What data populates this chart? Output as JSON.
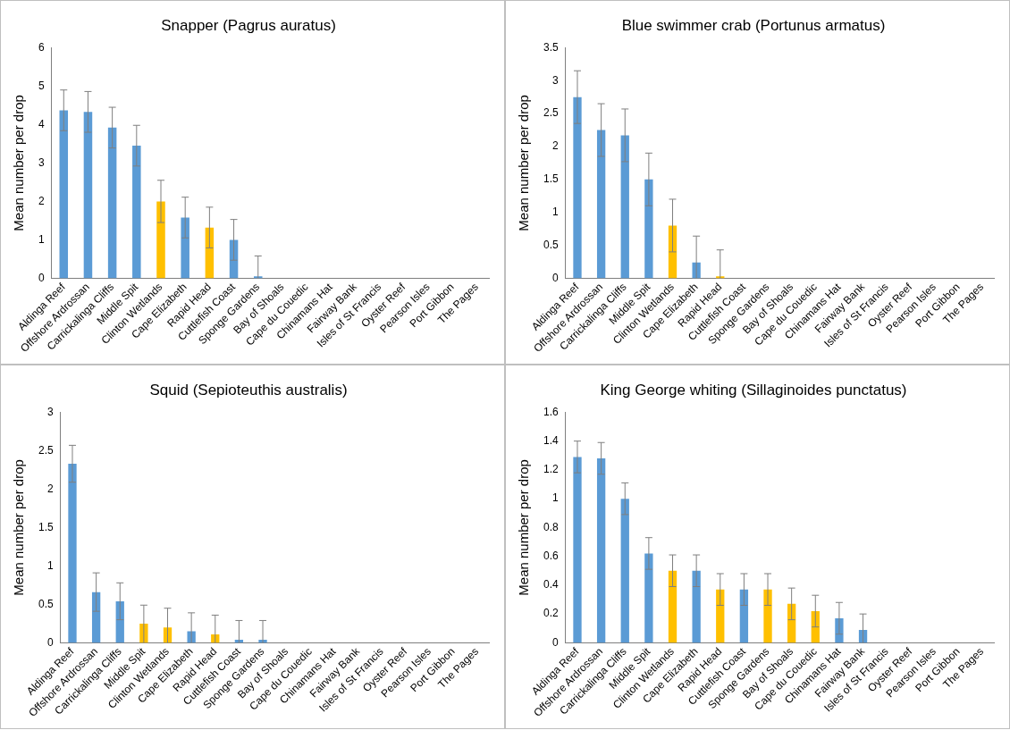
{
  "chart_data": [
    {
      "type": "bar",
      "title": "Snapper (Pagrus auratus)",
      "ylabel": "Mean number per drop",
      "categories": [
        "Aldinga Reef",
        "Offshore Ardrossan",
        "Carrickalinga Cliffs",
        "Middle Spit",
        "Clinton Wetlands",
        "Cape Elizabeth",
        "Rapid Head",
        "Cuttlefish Coast",
        "Sponge Gardens",
        "Bay of Shoals",
        "Cape du Couedic",
        "Chinamans Hat",
        "Fairway Bank",
        "Isles of St Francis",
        "Oyster Reef",
        "Pearson Isles",
        "Port Gibbon",
        "The Pages"
      ],
      "values": [
        4.37,
        4.33,
        3.92,
        3.45,
        2.0,
        1.58,
        1.32,
        1.0,
        0.05,
        0,
        0,
        0,
        0,
        0,
        0,
        0,
        0,
        0
      ],
      "errors": [
        0.53,
        0.53,
        0.53,
        0.53,
        0.55,
        0.53,
        0.53,
        0.53,
        [
          0,
          0.58
        ],
        null,
        null,
        null,
        null,
        null,
        null,
        null,
        null,
        null
      ],
      "colors": [
        "#5b9bd5",
        "#5b9bd5",
        "#5b9bd5",
        "#5b9bd5",
        "#ffc000",
        "#5b9bd5",
        "#ffc000",
        "#5b9bd5",
        "#5b9bd5",
        "#5b9bd5",
        "#5b9bd5",
        "#5b9bd5",
        "#5b9bd5",
        "#5b9bd5",
        "#5b9bd5",
        "#5b9bd5",
        "#5b9bd5",
        "#5b9bd5"
      ],
      "ylim": [
        0,
        6
      ],
      "yticks": [
        0,
        1,
        2,
        3,
        4,
        5,
        6
      ]
    },
    {
      "type": "bar",
      "title": "Blue swimmer crab (Portunus armatus)",
      "ylabel": "Mean number per drop",
      "categories": [
        "Aldinga Reef",
        "Offshore Ardrossan",
        "Carrickalinga Cliffs",
        "Middle Spit",
        "Clinton Wetlands",
        "Cape Elizabeth",
        "Rapid Head",
        "Cuttlefish Coast",
        "Sponge Gardens",
        "Bay of Shoals",
        "Cape du Couedic",
        "Chinamans Hat",
        "Fairway Bank",
        "Isles of St Francis",
        "Oyster Reef",
        "Pearson Isles",
        "Port Gibbon",
        "The Pages"
      ],
      "values": [
        2.75,
        2.25,
        2.17,
        1.5,
        0.8,
        0.24,
        0.03,
        0,
        0,
        0,
        0,
        0,
        0,
        0,
        0,
        0,
        0,
        0
      ],
      "errors": [
        0.4,
        0.4,
        0.4,
        0.4,
        0.4,
        [
          0,
          0.64
        ],
        [
          0,
          0.43
        ],
        null,
        null,
        null,
        null,
        null,
        null,
        null,
        null,
        null,
        null,
        null
      ],
      "colors": [
        "#5b9bd5",
        "#5b9bd5",
        "#5b9bd5",
        "#5b9bd5",
        "#ffc000",
        "#5b9bd5",
        "#ffc000",
        "#5b9bd5",
        "#5b9bd5",
        "#5b9bd5",
        "#5b9bd5",
        "#5b9bd5",
        "#5b9bd5",
        "#5b9bd5",
        "#5b9bd5",
        "#5b9bd5",
        "#5b9bd5",
        "#5b9bd5"
      ],
      "ylim": [
        0,
        3.5
      ],
      "yticks": [
        0,
        0.5,
        1,
        1.5,
        2,
        2.5,
        3,
        3.5
      ]
    },
    {
      "type": "bar",
      "title": "Squid (Sepioteuthis australis)",
      "ylabel": "Mean number per drop",
      "categories": [
        "Aldinga Reef",
        "Offshore Ardrossan",
        "Carrickalinga Cliffs",
        "Middle Spit",
        "Clinton Wetlands",
        "Cape Elizabeth",
        "Rapid Head",
        "Cuttlefish Coast",
        "Sponge Gardens",
        "Bay of Shoals",
        "Cape du Couedic",
        "Chinamans Hat",
        "Fairway Bank",
        "Isles of St Francis",
        "Oyster Reef",
        "Pearson Isles",
        "Port Gibbon",
        "The Pages"
      ],
      "values": [
        2.33,
        0.66,
        0.54,
        0.25,
        0.2,
        0.15,
        0.11,
        0.04,
        0.04,
        0,
        0,
        0,
        0,
        0,
        0,
        0,
        0,
        0
      ],
      "errors": [
        0.24,
        0.25,
        0.24,
        [
          0,
          0.49
        ],
        [
          0,
          0.45
        ],
        [
          0,
          0.39
        ],
        [
          0,
          0.36
        ],
        [
          0,
          0.29
        ],
        [
          0,
          0.29
        ],
        null,
        null,
        null,
        null,
        null,
        null,
        null,
        null,
        null
      ],
      "colors": [
        "#5b9bd5",
        "#5b9bd5",
        "#5b9bd5",
        "#ffc000",
        "#ffc000",
        "#5b9bd5",
        "#ffc000",
        "#5b9bd5",
        "#5b9bd5",
        "#5b9bd5",
        "#5b9bd5",
        "#5b9bd5",
        "#5b9bd5",
        "#5b9bd5",
        "#5b9bd5",
        "#5b9bd5",
        "#5b9bd5",
        "#5b9bd5"
      ],
      "ylim": [
        0,
        3
      ],
      "yticks": [
        0,
        0.5,
        1,
        1.5,
        2,
        2.5,
        3
      ]
    },
    {
      "type": "bar",
      "title": "King George whiting (Sillaginoides punctatus)",
      "ylabel": "Mean number per drop",
      "categories": [
        "Aldinga Reef",
        "Offshore Ardrossan",
        "Carrickalinga Cliffs",
        "Middle Spit",
        "Clinton Wetlands",
        "Cape Elizabeth",
        "Rapid Head",
        "Cuttlefish Coast",
        "Sponge Gardens",
        "Bay of Shoals",
        "Cape du Couedic",
        "Chinamans Hat",
        "Fairway Bank",
        "Isles of St Francis",
        "Oyster Reef",
        "Pearson Isles",
        "Port Gibbon",
        "The Pages"
      ],
      "values": [
        1.29,
        1.28,
        1.0,
        0.62,
        0.5,
        0.5,
        0.37,
        0.37,
        0.37,
        0.27,
        0.22,
        0.17,
        0.09,
        0,
        0,
        0,
        0,
        0
      ],
      "errors": [
        0.11,
        0.11,
        0.11,
        0.11,
        0.11,
        0.11,
        0.11,
        0.11,
        0.11,
        0.11,
        0.11,
        0.11,
        [
          0,
          0.2
        ],
        null,
        null,
        null,
        null,
        null
      ],
      "colors": [
        "#5b9bd5",
        "#5b9bd5",
        "#5b9bd5",
        "#5b9bd5",
        "#ffc000",
        "#5b9bd5",
        "#ffc000",
        "#5b9bd5",
        "#ffc000",
        "#ffc000",
        "#ffc000",
        "#5b9bd5",
        "#5b9bd5",
        "#5b9bd5",
        "#5b9bd5",
        "#5b9bd5",
        "#5b9bd5",
        "#5b9bd5"
      ],
      "ylim": [
        0,
        1.6
      ],
      "yticks": [
        0,
        0.2,
        0.4,
        0.6,
        0.8,
        1,
        1.2,
        1.4,
        1.6
      ]
    }
  ]
}
